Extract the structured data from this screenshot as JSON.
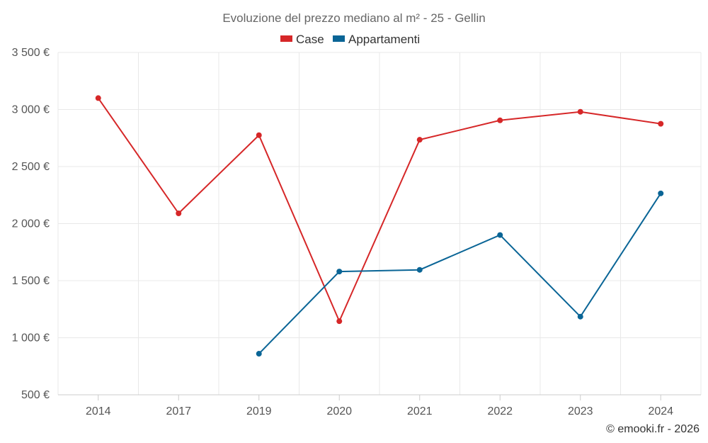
{
  "chart_data": {
    "type": "line",
    "title": "Evoluzione del prezzo mediano al m² - 25 - Gellin",
    "categories": [
      "2014",
      "2017",
      "2019",
      "2020",
      "2021",
      "2022",
      "2023",
      "2024"
    ],
    "series": [
      {
        "name": "Case",
        "color": "#d62728",
        "values": [
          3100,
          2090,
          2775,
          1145,
          2735,
          2905,
          2980,
          2875
        ]
      },
      {
        "name": "Appartamenti",
        "color": "#0a6596",
        "values": [
          null,
          null,
          860,
          1580,
          1595,
          1900,
          1185,
          2265
        ]
      }
    ],
    "yticks": [
      500,
      1000,
      1500,
      2000,
      2500,
      3000,
      3500
    ],
    "ytick_labels": [
      "500 €",
      "1 000 €",
      "1 500 €",
      "2 000 €",
      "2 500 €",
      "3 000 €",
      "3 500 €"
    ],
    "ylim": [
      500,
      3500
    ],
    "legend_position": "top-center",
    "grid": true
  },
  "credit": "© emooki.fr - 2026"
}
